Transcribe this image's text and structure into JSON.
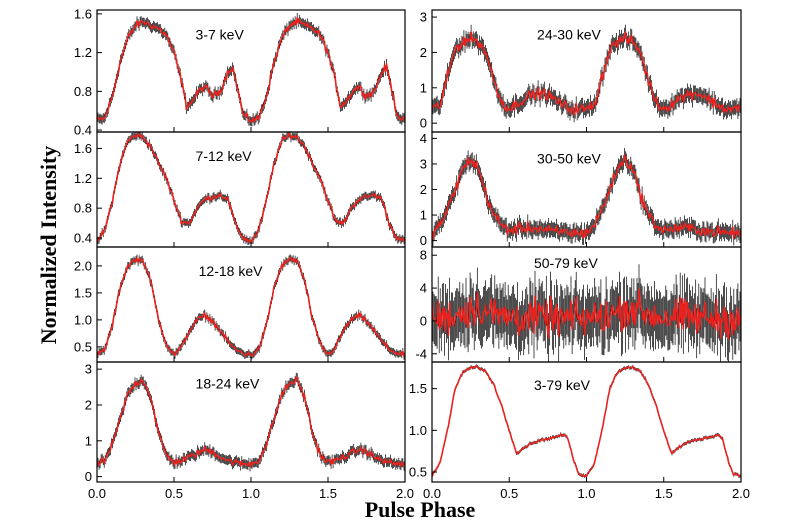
{
  "figure": {
    "xlabel": "Pulse Phase",
    "ylabel": "Normalized Intensity"
  },
  "chart_data": [
    {
      "type": "line",
      "title": "3-7 keV",
      "xlabel": "Pulse Phase",
      "ylabel": "Normalized Intensity",
      "xlim": [
        0,
        2
      ],
      "ylim": [
        0.38,
        1.64
      ],
      "xticks": [
        0.0,
        0.5,
        1.0,
        1.5,
        2.0
      ],
      "xtick_labels": [
        "0.0",
        "0.5",
        "1.0",
        "1.5",
        "2.0"
      ],
      "yticks": [
        0.4,
        0.8,
        1.2,
        1.6
      ],
      "ytick_labels": [
        "0.4",
        "0.8",
        "1.2",
        "1.6"
      ],
      "series": [
        {
          "color": "#e8231f",
          "error_color": "#000000",
          "noise": 0.03,
          "x": [
            0,
            0.05,
            0.1,
            0.15,
            0.2,
            0.25,
            0.3,
            0.35,
            0.4,
            0.45,
            0.5,
            0.55,
            0.58,
            0.62,
            0.66,
            0.7,
            0.75,
            0.8,
            0.85,
            0.88,
            0.91,
            0.95,
            1.0
          ],
          "y": [
            0.5,
            0.52,
            0.75,
            1.1,
            1.35,
            1.48,
            1.52,
            1.48,
            1.45,
            1.38,
            1.2,
            0.9,
            0.65,
            0.7,
            0.8,
            0.85,
            0.75,
            0.8,
            1.0,
            1.05,
            0.85,
            0.55,
            0.5
          ]
        }
      ]
    },
    {
      "type": "line",
      "title": "7-12 keV",
      "xlabel": "Pulse Phase",
      "ylabel": "Normalized Intensity",
      "xlim": [
        0,
        2
      ],
      "ylim": [
        0.28,
        1.82
      ],
      "xticks": [
        0.0,
        0.5,
        1.0,
        1.5,
        2.0
      ],
      "xtick_labels": [
        "0.0",
        "0.5",
        "1.0",
        "1.5",
        "2.0"
      ],
      "yticks": [
        0.4,
        0.8,
        1.2,
        1.6
      ],
      "ytick_labels": [
        "0.4",
        "0.8",
        "1.2",
        "1.6"
      ],
      "series": [
        {
          "color": "#e8231f",
          "error_color": "#000000",
          "noise": 0.03,
          "x": [
            0,
            0.05,
            0.1,
            0.15,
            0.2,
            0.25,
            0.3,
            0.35,
            0.4,
            0.45,
            0.5,
            0.55,
            0.6,
            0.65,
            0.7,
            0.75,
            0.8,
            0.85,
            0.9,
            0.95,
            1.0
          ],
          "y": [
            0.35,
            0.5,
            0.9,
            1.4,
            1.7,
            1.78,
            1.75,
            1.62,
            1.4,
            1.2,
            0.9,
            0.62,
            0.6,
            0.8,
            0.92,
            0.95,
            0.98,
            0.92,
            0.58,
            0.4,
            0.35
          ]
        }
      ]
    },
    {
      "type": "line",
      "title": "12-18 keV",
      "xlabel": "Pulse Phase",
      "ylabel": "Normalized Intensity",
      "xlim": [
        0,
        2
      ],
      "ylim": [
        0.22,
        2.35
      ],
      "xticks": [
        0.0,
        0.5,
        1.0,
        1.5,
        2.0
      ],
      "xtick_labels": [
        "0.0",
        "0.5",
        "1.0",
        "1.5",
        "2.0"
      ],
      "yticks": [
        0.5,
        1.0,
        1.5,
        2.0
      ],
      "ytick_labels": [
        "0.5",
        "1.0",
        "1.5",
        "2.0"
      ],
      "series": [
        {
          "color": "#e8231f",
          "error_color": "#000000",
          "noise": 0.04,
          "x": [
            0,
            0.05,
            0.1,
            0.15,
            0.2,
            0.25,
            0.3,
            0.35,
            0.4,
            0.45,
            0.5,
            0.55,
            0.6,
            0.65,
            0.7,
            0.75,
            0.8,
            0.85,
            0.9,
            0.95,
            1.0
          ],
          "y": [
            0.35,
            0.45,
            0.9,
            1.6,
            2.0,
            2.12,
            2.1,
            1.7,
            1.0,
            0.55,
            0.35,
            0.5,
            0.8,
            1.0,
            1.08,
            0.98,
            0.8,
            0.6,
            0.45,
            0.38,
            0.35
          ]
        }
      ]
    },
    {
      "type": "line",
      "title": "18-24 keV",
      "xlabel": "Pulse Phase",
      "ylabel": "Normalized Intensity",
      "xlim": [
        0,
        2
      ],
      "ylim": [
        -0.15,
        3.2
      ],
      "xticks": [
        0.0,
        0.5,
        1.0,
        1.5,
        2.0
      ],
      "xtick_labels": [
        "0.0",
        "0.5",
        "1.0",
        "1.5",
        "2.0"
      ],
      "yticks": [
        0,
        1,
        2,
        3
      ],
      "ytick_labels": [
        "0",
        "1",
        "2",
        "3"
      ],
      "series": [
        {
          "color": "#e8231f",
          "error_color": "#000000",
          "noise": 0.08,
          "x": [
            0,
            0.05,
            0.1,
            0.15,
            0.2,
            0.25,
            0.3,
            0.35,
            0.4,
            0.45,
            0.5,
            0.55,
            0.6,
            0.65,
            0.7,
            0.75,
            0.8,
            0.85,
            0.9,
            0.95,
            1.0
          ],
          "y": [
            0.35,
            0.45,
            0.9,
            1.6,
            2.3,
            2.6,
            2.7,
            2.2,
            1.2,
            0.6,
            0.4,
            0.45,
            0.55,
            0.65,
            0.75,
            0.7,
            0.55,
            0.45,
            0.4,
            0.35,
            0.35
          ]
        }
      ]
    },
    {
      "type": "line",
      "title": "24-30 keV",
      "xlabel": "Pulse Phase",
      "ylabel": "Normalized Intensity",
      "xlim": [
        0,
        2
      ],
      "ylim": [
        -0.25,
        3.2
      ],
      "xticks": [
        0.0,
        0.5,
        1.0,
        1.5,
        2.0
      ],
      "xtick_labels": [
        "0.0",
        "0.5",
        "1.0",
        "1.5",
        "2.0"
      ],
      "yticks": [
        0,
        1,
        2,
        3
      ],
      "ytick_labels": [
        "0",
        "1",
        "2",
        "3"
      ],
      "series": [
        {
          "color": "#e8231f",
          "error_color": "#000000",
          "noise": 0.13,
          "x": [
            0,
            0.05,
            0.1,
            0.15,
            0.2,
            0.25,
            0.3,
            0.35,
            0.4,
            0.45,
            0.5,
            0.55,
            0.6,
            0.65,
            0.7,
            0.75,
            0.8,
            0.85,
            0.9,
            0.95,
            1.0
          ],
          "y": [
            0.4,
            0.5,
            1.3,
            2.1,
            2.3,
            2.4,
            2.3,
            2.0,
            1.2,
            0.6,
            0.4,
            0.55,
            0.7,
            0.8,
            0.85,
            0.8,
            0.65,
            0.5,
            0.4,
            0.4,
            0.4
          ]
        }
      ]
    },
    {
      "type": "line",
      "title": "30-50 keV",
      "xlabel": "Pulse Phase",
      "ylabel": "Normalized Intensity",
      "xlim": [
        0,
        2
      ],
      "ylim": [
        -0.25,
        4.25
      ],
      "xticks": [
        0.0,
        0.5,
        1.0,
        1.5,
        2.0
      ],
      "xtick_labels": [
        "0.0",
        "0.5",
        "1.0",
        "1.5",
        "2.0"
      ],
      "yticks": [
        0,
        1,
        2,
        3,
        4
      ],
      "ytick_labels": [
        "0",
        "1",
        "2",
        "3",
        "4"
      ],
      "series": [
        {
          "color": "#e8231f",
          "error_color": "#000000",
          "noise": 0.18,
          "x": [
            0,
            0.05,
            0.1,
            0.15,
            0.2,
            0.25,
            0.3,
            0.35,
            0.4,
            0.45,
            0.5,
            0.55,
            0.6,
            0.65,
            0.7,
            0.75,
            0.8,
            0.85,
            0.9,
            0.95,
            1.0
          ],
          "y": [
            0.3,
            0.6,
            1.2,
            2.0,
            2.8,
            3.2,
            2.8,
            1.8,
            1.0,
            0.6,
            0.4,
            0.45,
            0.5,
            0.5,
            0.45,
            0.4,
            0.35,
            0.35,
            0.3,
            0.3,
            0.3
          ]
        }
      ]
    },
    {
      "type": "line",
      "title": "50-79 keV",
      "xlabel": "Pulse Phase",
      "ylabel": "Normalized Intensity",
      "xlim": [
        0,
        2
      ],
      "ylim": [
        -5,
        9
      ],
      "xticks": [
        0.0,
        0.5,
        1.0,
        1.5,
        2.0
      ],
      "xtick_labels": [
        "0.0",
        "0.5",
        "1.0",
        "1.5",
        "2.0"
      ],
      "yticks": [
        -4,
        0,
        4,
        8
      ],
      "ytick_labels": [
        "-4",
        "0",
        "4",
        "8"
      ],
      "series": [
        {
          "color": "#e8231f",
          "error_color": "#000000",
          "noise": 1.9,
          "x": [
            0,
            0.1,
            0.2,
            0.25,
            0.3,
            0.35,
            0.4,
            0.5,
            0.6,
            0.7,
            0.8,
            0.9,
            1.0
          ],
          "y": [
            0.3,
            0.5,
            1.0,
            1.5,
            1.6,
            1.2,
            0.8,
            0.5,
            0.4,
            0.4,
            0.3,
            0.3,
            0.3
          ]
        }
      ]
    },
    {
      "type": "line",
      "title": "3-79 keV",
      "xlabel": "Pulse Phase",
      "ylabel": "Normalized Intensity",
      "xlim": [
        0,
        2
      ],
      "ylim": [
        0.38,
        1.82
      ],
      "xticks": [
        0.0,
        0.5,
        1.0,
        1.5,
        2.0
      ],
      "xtick_labels": [
        "0.0",
        "0.5",
        "1.0",
        "1.5",
        "2.0"
      ],
      "yticks": [
        0.5,
        1.0,
        1.5
      ],
      "ytick_labels": [
        "0.5",
        "1.0",
        "1.5"
      ],
      "series": [
        {
          "color": "#e8231f",
          "error_color": "#000000",
          "noise": 0.012,
          "x": [
            0,
            0.05,
            0.1,
            0.15,
            0.2,
            0.25,
            0.3,
            0.35,
            0.4,
            0.45,
            0.5,
            0.55,
            0.6,
            0.65,
            0.7,
            0.75,
            0.8,
            0.85,
            0.88,
            0.92,
            0.95,
            1.0
          ],
          "y": [
            0.45,
            0.6,
            1.0,
            1.5,
            1.7,
            1.75,
            1.76,
            1.7,
            1.55,
            1.3,
            1.0,
            0.72,
            0.8,
            0.85,
            0.88,
            0.9,
            0.92,
            0.95,
            0.9,
            0.62,
            0.48,
            0.45
          ]
        }
      ]
    }
  ]
}
